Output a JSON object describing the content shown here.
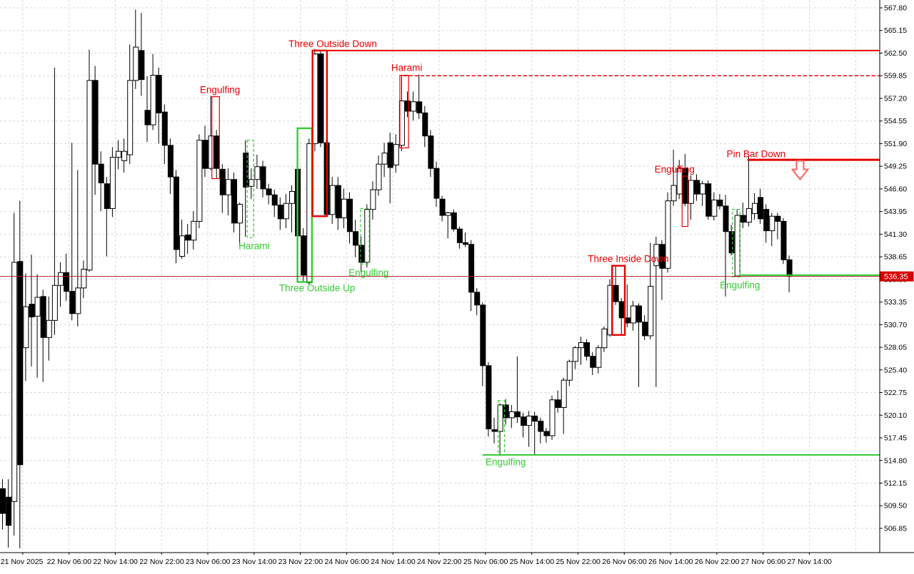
{
  "window": {
    "background": "#ffffff"
  },
  "colors": {
    "bull_fill": "#ffffff",
    "bear_fill": "#000000",
    "candle_outline": "#000000",
    "grid": "#d8d8d8",
    "axis_line": "#000000",
    "axis_text": "#000000",
    "pattern_red": "#e60000",
    "pattern_green": "#33cc33",
    "price_line": "#aa2222",
    "badge_bg": "#d40000",
    "badge_text": "#ffffff",
    "arrow_stroke": "#ff6b6b"
  },
  "current_price": {
    "text": "536.35",
    "value": 536.35
  },
  "price_axis": {
    "first": 567.8,
    "step": 2.65,
    "labels": [
      "567.80",
      "565.15",
      "562.50",
      "559.85",
      "557.20",
      "554.55",
      "551.90",
      "549.25",
      "546.60",
      "543.95",
      "541.30",
      "538.65",
      "536.00",
      "533.35",
      "530.70",
      "528.05",
      "525.40",
      "522.75",
      "520.10",
      "517.45",
      "514.80",
      "512.15",
      "509.50",
      "506.85"
    ]
  },
  "time_axis": {
    "labels": [
      "21 Nov 2025",
      "22 Nov 06:00",
      "22 Nov 14:00",
      "22 Nov 22:00",
      "23 Nov 06:00",
      "23 Nov 14:00",
      "23 Nov 22:00",
      "24 Nov 06:00",
      "24 Nov 14:00",
      "24 Nov 22:00",
      "25 Nov 06:00",
      "25 Nov 14:00",
      "25 Nov 22:00",
      "26 Nov 06:00",
      "26 Nov 14:00",
      "26 Nov 22:00",
      "27 Nov 06:00",
      "27 Nov 14:00"
    ],
    "bars_per_tick": 8,
    "extra_gridlines": 1
  },
  "chart_data": {
    "type": "candlestick",
    "title": "",
    "ylim": [
      504.0,
      568.7
    ],
    "grid": true,
    "bar_count": 137,
    "ohlc": [
      [
        511.5,
        512.6,
        506.7,
        508.6
      ],
      [
        510.5,
        512.6,
        504.6,
        507.2
      ],
      [
        510.0,
        543.8,
        506.0,
        538.0
      ],
      [
        538.1,
        545.2,
        504.5,
        514.3
      ],
      [
        528.0,
        536.7,
        524.1,
        532.8
      ],
      [
        533.1,
        538.9,
        525.8,
        531.6
      ],
      [
        531.7,
        536.6,
        524.5,
        533.9
      ],
      [
        534.0,
        534.8,
        524.0,
        529.2
      ],
      [
        529.2,
        534.0,
        526.5,
        531.2
      ],
      [
        531.2,
        560.8,
        529.5,
        535.3
      ],
      [
        535.3,
        538.0,
        532.8,
        536.8
      ],
      [
        536.8,
        539.0,
        533.5,
        534.6
      ],
      [
        534.6,
        552.0,
        531.2,
        532.0
      ],
      [
        532.0,
        548.8,
        530.5,
        535.0
      ],
      [
        535.0,
        538.2,
        533.8,
        537.2
      ],
      [
        537.1,
        562.9,
        536.9,
        559.3
      ],
      [
        559.3,
        561.0,
        545.9,
        549.5
      ],
      [
        549.5,
        551.0,
        544.0,
        547.3
      ],
      [
        547.2,
        548.0,
        538.7,
        544.3
      ],
      [
        544.3,
        551.5,
        543.3,
        550.3
      ],
      [
        550.3,
        552.3,
        548.9,
        551.0
      ],
      [
        549.9,
        552.5,
        548.5,
        551.0
      ],
      [
        550.6,
        563.5,
        549.5,
        559.3
      ],
      [
        559.3,
        567.6,
        558.3,
        563.2
      ],
      [
        562.8,
        567.2,
        557.5,
        559.4
      ],
      [
        555.8,
        559.8,
        552.1,
        554.1
      ],
      [
        554.1,
        562.4,
        553.5,
        559.9
      ],
      [
        559.9,
        560.8,
        551.9,
        555.5
      ],
      [
        555.6,
        556.5,
        549.5,
        551.7
      ],
      [
        551.7,
        552.5,
        546.0,
        548.0
      ],
      [
        548.0,
        548.8,
        537.9,
        539.5
      ],
      [
        538.7,
        543.0,
        538.4,
        541.1
      ],
      [
        541.2,
        542.5,
        539.0,
        540.6
      ],
      [
        540.6,
        544.0,
        539.5,
        542.8
      ],
      [
        542.8,
        553.0,
        542.0,
        552.3
      ],
      [
        552.3,
        554.0,
        548.0,
        549.0
      ],
      [
        549.0,
        557.5,
        548.8,
        552.8
      ],
      [
        552.8,
        553.5,
        547.8,
        549.0
      ],
      [
        548.9,
        549.5,
        543.8,
        545.9
      ],
      [
        545.9,
        549.0,
        543.5,
        547.7
      ],
      [
        547.7,
        548.5,
        541.5,
        542.6
      ],
      [
        542.6,
        545.0,
        539.9,
        544.8
      ],
      [
        550.8,
        552.3,
        541.0,
        546.8
      ],
      [
        546.9,
        549.0,
        545.4,
        547.7
      ],
      [
        547.7,
        550.6,
        546.6,
        549.2
      ],
      [
        549.2,
        549.9,
        545.6,
        546.6
      ],
      [
        546.6,
        547.2,
        544.8,
        545.9
      ],
      [
        545.9,
        546.5,
        543.3,
        544.7
      ],
      [
        544.7,
        545.6,
        541.8,
        543.1
      ],
      [
        543.1,
        546.0,
        542.0,
        544.9
      ],
      [
        544.9,
        547.0,
        541.5,
        546.3
      ],
      [
        548.9,
        549.8,
        540.2,
        541.1
      ],
      [
        541.1,
        542.0,
        535.8,
        536.5
      ],
      [
        535.6,
        552.5,
        535.4,
        551.9
      ],
      [
        551.9,
        563.0,
        551.0,
        562.4
      ],
      [
        562.4,
        562.9,
        551.5,
        552.0
      ],
      [
        552.0,
        552.5,
        543.4,
        543.6
      ],
      [
        543.6,
        548.0,
        542.5,
        547.0
      ],
      [
        547.0,
        548.0,
        541.8,
        543.2
      ],
      [
        543.2,
        546.6,
        542.0,
        545.4
      ],
      [
        545.4,
        546.2,
        540.2,
        541.6
      ],
      [
        541.6,
        543.0,
        538.6,
        540.0
      ],
      [
        540.0,
        541.0,
        536.8,
        538.0
      ],
      [
        538.0,
        544.8,
        537.4,
        544.2
      ],
      [
        544.2,
        547.5,
        543.0,
        546.5
      ],
      [
        546.5,
        550.5,
        545.8,
        549.5
      ],
      [
        549.5,
        552.0,
        548.0,
        550.8
      ],
      [
        552.0,
        553.2,
        544.9,
        549.1
      ],
      [
        549.4,
        553.0,
        548.5,
        551.8
      ],
      [
        551.7,
        559.9,
        551.0,
        556.9
      ],
      [
        556.9,
        558.0,
        555.0,
        555.7
      ],
      [
        555.7,
        558.0,
        554.6,
        556.8
      ],
      [
        556.8,
        560.0,
        554.8,
        555.5
      ],
      [
        555.5,
        556.3,
        551.5,
        552.8
      ],
      [
        552.8,
        553.5,
        548.0,
        549.0
      ],
      [
        549.0,
        549.8,
        544.5,
        545.5
      ],
      [
        545.4,
        545.8,
        542.8,
        543.5
      ],
      [
        543.5,
        543.9,
        540.8,
        543.8
      ],
      [
        543.8,
        544.2,
        541.6,
        541.9
      ],
      [
        541.9,
        542.2,
        539.6,
        540.3
      ],
      [
        540.3,
        541.5,
        539.8,
        540.1
      ],
      [
        540.1,
        540.6,
        532.3,
        534.5
      ],
      [
        534.5,
        535.0,
        531.8,
        533.0
      ],
      [
        533.0,
        533.3,
        523.5,
        525.9
      ],
      [
        525.9,
        526.3,
        517.6,
        518.5
      ],
      [
        518.4,
        519.8,
        516.8,
        518.2
      ],
      [
        518.2,
        521.5,
        515.4,
        521.3
      ],
      [
        521.3,
        522.0,
        519.0,
        519.8
      ],
      [
        519.8,
        521.3,
        518.6,
        520.5
      ],
      [
        520.5,
        527.0,
        519.2,
        519.9
      ],
      [
        519.9,
        520.4,
        517.5,
        518.9
      ],
      [
        518.9,
        520.6,
        516.4,
        520.0
      ],
      [
        520.0,
        520.5,
        515.5,
        519.4
      ],
      [
        519.4,
        519.8,
        516.8,
        518.2
      ],
      [
        518.2,
        518.6,
        516.9,
        517.7
      ],
      [
        517.7,
        522.4,
        517.2,
        521.9
      ],
      [
        521.9,
        523.0,
        520.4,
        521.0
      ],
      [
        521.0,
        524.5,
        517.9,
        524.2
      ],
      [
        524.2,
        526.6,
        523.5,
        526.4
      ],
      [
        526.4,
        528.2,
        525.5,
        528.0
      ],
      [
        528.0,
        529.3,
        526.0,
        528.6
      ],
      [
        528.6,
        529.0,
        526.5,
        527.0
      ],
      [
        527.0,
        527.5,
        524.8,
        525.7
      ],
      [
        525.7,
        528.3,
        525.0,
        528.0
      ],
      [
        528.0,
        530.5,
        527.5,
        530.2
      ],
      [
        529.5,
        536.0,
        529.3,
        535.3
      ],
      [
        535.3,
        537.6,
        533.0,
        533.4
      ],
      [
        533.4,
        533.8,
        529.5,
        531.5
      ],
      [
        531.5,
        535.4,
        530.4,
        530.9
      ],
      [
        530.9,
        533.5,
        530.0,
        532.9
      ],
      [
        532.9,
        533.2,
        523.4,
        531.0
      ],
      [
        531.0,
        531.8,
        528.9,
        529.4
      ],
      [
        529.4,
        540.3,
        529.0,
        535.2
      ],
      [
        537.6,
        541.0,
        523.4,
        540.1
      ],
      [
        540.1,
        540.6,
        533.6,
        537.3
      ],
      [
        537.3,
        546.2,
        536.8,
        545.2
      ],
      [
        545.2,
        551.2,
        544.6,
        547.0
      ],
      [
        546.0,
        550.0,
        545.4,
        549.0
      ],
      [
        549.0,
        550.7,
        544.6,
        544.9
      ],
      [
        544.9,
        548.2,
        543.0,
        547.6
      ],
      [
        547.6,
        548.3,
        545.2,
        546.0
      ],
      [
        546.0,
        547.5,
        544.6,
        547.2
      ],
      [
        547.2,
        547.6,
        543.0,
        543.4
      ],
      [
        543.4,
        546.2,
        542.9,
        545.3
      ],
      [
        545.3,
        546.0,
        544.2,
        544.6
      ],
      [
        544.6,
        545.9,
        534.0,
        541.6
      ],
      [
        541.6,
        542.4,
        538.8,
        539.1
      ],
      [
        536.4,
        544.2,
        536.3,
        543.5
      ],
      [
        543.5,
        545.0,
        542.0,
        542.7
      ],
      [
        542.7,
        550.4,
        542.2,
        544.3
      ],
      [
        543.7,
        546.1,
        543.0,
        544.9
      ],
      [
        545.6,
        546.6,
        542.5,
        543.1
      ],
      [
        544.2,
        544.8,
        540.3,
        541.7
      ],
      [
        541.7,
        543.8,
        539.9,
        543.4
      ],
      [
        543.4,
        543.8,
        540.7,
        542.8
      ],
      [
        542.8,
        543.2,
        537.8,
        538.3
      ],
      [
        538.3,
        538.8,
        534.5,
        536.35
      ]
    ],
    "patterns": [
      {
        "label": "Engulfing",
        "color": "red",
        "box": {
          "bars": [
            36.2,
            37.5
          ],
          "price": [
            557.4,
            547.8
          ],
          "thick": false,
          "dashed": false
        },
        "label_pos": {
          "bar": 37.6,
          "price": 558.2
        }
      },
      {
        "label": "Harami",
        "color": "green",
        "box": {
          "bars": [
            42.3,
            43.4
          ],
          "price": [
            552.3,
            540.9
          ],
          "thick": false,
          "dashed": true
        },
        "label_pos": {
          "bar": 43.5,
          "price": 539.9
        }
      },
      {
        "label": "Three Outside Up",
        "color": "green",
        "box": {
          "bars": [
            51.0,
            53.5
          ],
          "price": [
            553.7,
            535.7
          ],
          "thick": true,
          "dashed": false
        },
        "label_pos": {
          "bar": 54.4,
          "price": 535.0
        }
      },
      {
        "label": "Three Outside Down",
        "color": "red",
        "box": {
          "bars": [
            53.6,
            56.1
          ],
          "price": [
            562.8,
            543.4
          ],
          "thick": true,
          "dashed": false
        },
        "label_pos": {
          "bar": 57.1,
          "price": 563.6
        },
        "line": {
          "level": 562.8,
          "from_bar": 53.9,
          "style": "solid",
          "width": 2
        }
      },
      {
        "label": "Engulfing",
        "color": "green",
        "box": {
          "bars": [
            61.9,
            63.4
          ],
          "price": [
            544.3,
            537.8
          ],
          "thick": false,
          "dashed": true
        },
        "label_pos": {
          "bar": 63.3,
          "price": 536.8
        }
      },
      {
        "label": "Harami",
        "color": "red",
        "box": {
          "bars": [
            68.7,
            70.2
          ],
          "price": [
            559.9,
            551.4
          ],
          "thick": false,
          "dashed": false
        },
        "label_pos": {
          "bar": 69.9,
          "price": 560.8
        },
        "line": {
          "level": 559.85,
          "from_bar": 69.3,
          "style": "dashed",
          "width": 1.5
        }
      },
      {
        "label": "Engulfing",
        "color": "green",
        "box": {
          "bars": [
            85.7,
            86.8
          ],
          "price": [
            521.8,
            515.4
          ],
          "thick": false,
          "dashed": true
        },
        "label_pos": {
          "bar": 87.0,
          "price": 514.6
        },
        "line": {
          "level": 515.45,
          "from_bar": 83.0,
          "style": "solid",
          "width": 2
        }
      },
      {
        "label": "Three Inside Down",
        "color": "red",
        "box": {
          "bars": [
            105.4,
            107.6
          ],
          "price": [
            537.6,
            529.5
          ],
          "thick": true,
          "dashed": false
        },
        "label_pos": {
          "bar": 108.2,
          "price": 538.4
        }
      },
      {
        "label": "Engulfing",
        "color": "red",
        "box": {
          "bars": [
            117.5,
            118.5
          ],
          "price": [
            548.1,
            542.2
          ],
          "thick": false,
          "dashed": false
        },
        "label_pos": {
          "bar": 116.2,
          "price": 548.9
        }
      },
      {
        "label": "Pin Bar Down",
        "color": "red",
        "label_pos": {
          "bar": 130.3,
          "price": 550.7
        },
        "line": {
          "level": 550.0,
          "from_bar": 128.8,
          "style": "solid",
          "width": 3
        },
        "arrow": {
          "bar": 137.9,
          "price": 548.8
        }
      },
      {
        "label": "Engulfing",
        "color": "green",
        "box": {
          "bars": [
            126.2,
            127.5
          ],
          "price": [
            544.2,
            536.3
          ],
          "thick": false,
          "dashed": true
        },
        "label_pos": {
          "bar": 127.5,
          "price": 535.3
        },
        "line": {
          "level": 536.5,
          "from_bar": 127.4,
          "style": "solid",
          "width": 2
        }
      }
    ]
  }
}
